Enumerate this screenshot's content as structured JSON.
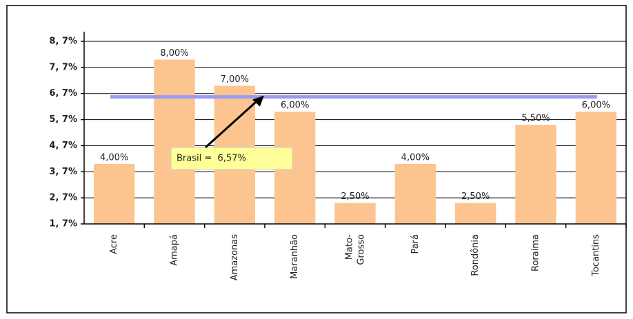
{
  "chart_data": {
    "type": "bar",
    "categories": [
      "Acre",
      "Amapá",
      "Amazonas",
      "Maranhão",
      "Mato-\nGrosso",
      "Pará",
      "Rondônia",
      "Roraima",
      "Tocantins"
    ],
    "values": [
      4,
      8,
      7,
      6,
      2.5,
      4,
      2.5,
      5.5,
      6
    ],
    "value_labels": [
      "4,00%",
      "8,00%",
      "7,00%",
      "6,00%",
      "2,50%",
      "4,00%",
      "2,50%",
      "5,50%",
      "6,00%"
    ],
    "color": "#fcc590",
    "ylim": [
      1.7,
      8.7
    ],
    "yticks": [
      {
        "value": 1.7,
        "label": "1, 7%"
      },
      {
        "value": 2.7,
        "label": "2, 7%"
      },
      {
        "value": 3.7,
        "label": "3, 7%"
      },
      {
        "value": 4.7,
        "label": "4, 7%"
      },
      {
        "value": 5.7,
        "label": "5, 7%"
      },
      {
        "value": 6.7,
        "label": "6, 7%"
      },
      {
        "value": 7.7,
        "label": "7, 7%"
      },
      {
        "value": 8.7,
        "label": "8, 7%"
      }
    ],
    "grid": true,
    "reference": {
      "value": 6.57,
      "label": "Brasil =  6,57%",
      "color": "#9a9af0"
    }
  }
}
